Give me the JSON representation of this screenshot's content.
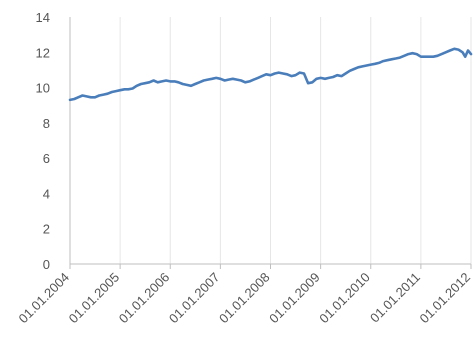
{
  "chart_data": {
    "type": "line",
    "title": "",
    "xlabel": "",
    "ylabel": "",
    "xlim": [
      "2004-01-01",
      "2012-01-01"
    ],
    "ylim": [
      0,
      14
    ],
    "grid": "vertical",
    "legend": "none",
    "x_tick_labels": [
      "01.01.2004",
      "01.01.2005",
      "01.01.2006",
      "01.01.2007",
      "01.01.2008",
      "01.01.2009",
      "01.01.2010",
      "01.01.2011",
      "01.01.2012"
    ],
    "y_ticks": [
      0,
      2,
      4,
      6,
      8,
      10,
      12,
      14
    ],
    "y_tick_labels": [
      "0",
      "2",
      "4",
      "6",
      "8",
      "10",
      "12",
      "14"
    ],
    "series": [
      {
        "color": "#4a7ebb",
        "points": [
          [
            "2004-01-01",
            9.3
          ],
          [
            "2004-02-01",
            9.35
          ],
          [
            "2004-03-01",
            9.45
          ],
          [
            "2004-04-01",
            9.55
          ],
          [
            "2004-05-01",
            9.5
          ],
          [
            "2004-06-01",
            9.45
          ],
          [
            "2004-07-01",
            9.45
          ],
          [
            "2004-08-01",
            9.55
          ],
          [
            "2004-09-01",
            9.6
          ],
          [
            "2004-10-01",
            9.65
          ],
          [
            "2004-11-01",
            9.75
          ],
          [
            "2004-12-01",
            9.8
          ],
          [
            "2005-01-01",
            9.85
          ],
          [
            "2005-02-01",
            9.9
          ],
          [
            "2005-03-01",
            9.9
          ],
          [
            "2005-04-01",
            9.95
          ],
          [
            "2005-05-01",
            10.1
          ],
          [
            "2005-06-01",
            10.2
          ],
          [
            "2005-07-01",
            10.25
          ],
          [
            "2005-08-01",
            10.3
          ],
          [
            "2005-09-01",
            10.4
          ],
          [
            "2005-10-01",
            10.3
          ],
          [
            "2005-11-01",
            10.35
          ],
          [
            "2005-12-01",
            10.4
          ],
          [
            "2006-01-01",
            10.35
          ],
          [
            "2006-02-01",
            10.35
          ],
          [
            "2006-03-01",
            10.3
          ],
          [
            "2006-04-01",
            10.2
          ],
          [
            "2006-05-01",
            10.15
          ],
          [
            "2006-06-01",
            10.1
          ],
          [
            "2006-07-01",
            10.2
          ],
          [
            "2006-08-01",
            10.3
          ],
          [
            "2006-09-01",
            10.4
          ],
          [
            "2006-10-01",
            10.45
          ],
          [
            "2006-11-01",
            10.5
          ],
          [
            "2006-12-01",
            10.55
          ],
          [
            "2007-01-01",
            10.5
          ],
          [
            "2007-02-01",
            10.4
          ],
          [
            "2007-03-01",
            10.45
          ],
          [
            "2007-04-01",
            10.5
          ],
          [
            "2007-05-01",
            10.45
          ],
          [
            "2007-06-01",
            10.4
          ],
          [
            "2007-07-01",
            10.3
          ],
          [
            "2007-08-01",
            10.35
          ],
          [
            "2007-09-01",
            10.45
          ],
          [
            "2007-10-01",
            10.55
          ],
          [
            "2007-11-01",
            10.65
          ],
          [
            "2007-12-01",
            10.75
          ],
          [
            "2008-01-01",
            10.7
          ],
          [
            "2008-02-01",
            10.8
          ],
          [
            "2008-03-01",
            10.85
          ],
          [
            "2008-04-01",
            10.8
          ],
          [
            "2008-05-01",
            10.75
          ],
          [
            "2008-06-01",
            10.65
          ],
          [
            "2008-07-01",
            10.7
          ],
          [
            "2008-08-01",
            10.85
          ],
          [
            "2008-09-01",
            10.8
          ],
          [
            "2008-10-01",
            10.25
          ],
          [
            "2008-11-01",
            10.3
          ],
          [
            "2008-12-01",
            10.5
          ],
          [
            "2009-01-01",
            10.55
          ],
          [
            "2009-02-01",
            10.5
          ],
          [
            "2009-03-01",
            10.55
          ],
          [
            "2009-04-01",
            10.6
          ],
          [
            "2009-05-01",
            10.7
          ],
          [
            "2009-06-01",
            10.65
          ],
          [
            "2009-07-01",
            10.8
          ],
          [
            "2009-08-01",
            10.95
          ],
          [
            "2009-09-01",
            11.05
          ],
          [
            "2009-10-01",
            11.15
          ],
          [
            "2009-11-01",
            11.2
          ],
          [
            "2009-12-01",
            11.25
          ],
          [
            "2010-01-01",
            11.3
          ],
          [
            "2010-02-01",
            11.35
          ],
          [
            "2010-03-01",
            11.4
          ],
          [
            "2010-04-01",
            11.5
          ],
          [
            "2010-05-01",
            11.55
          ],
          [
            "2010-06-01",
            11.6
          ],
          [
            "2010-07-01",
            11.65
          ],
          [
            "2010-08-01",
            11.7
          ],
          [
            "2010-09-01",
            11.8
          ],
          [
            "2010-10-01",
            11.9
          ],
          [
            "2010-11-01",
            11.95
          ],
          [
            "2010-12-01",
            11.9
          ],
          [
            "2011-01-01",
            11.75
          ],
          [
            "2011-02-01",
            11.75
          ],
          [
            "2011-03-01",
            11.75
          ],
          [
            "2011-04-01",
            11.75
          ],
          [
            "2011-05-01",
            11.8
          ],
          [
            "2011-06-01",
            11.9
          ],
          [
            "2011-07-01",
            12.0
          ],
          [
            "2011-08-01",
            12.1
          ],
          [
            "2011-09-01",
            12.2
          ],
          [
            "2011-10-01",
            12.15
          ],
          [
            "2011-11-01",
            12.0
          ],
          [
            "2011-11-20",
            11.75
          ],
          [
            "2011-12-10",
            12.1
          ],
          [
            "2012-01-01",
            11.9
          ]
        ]
      }
    ]
  }
}
